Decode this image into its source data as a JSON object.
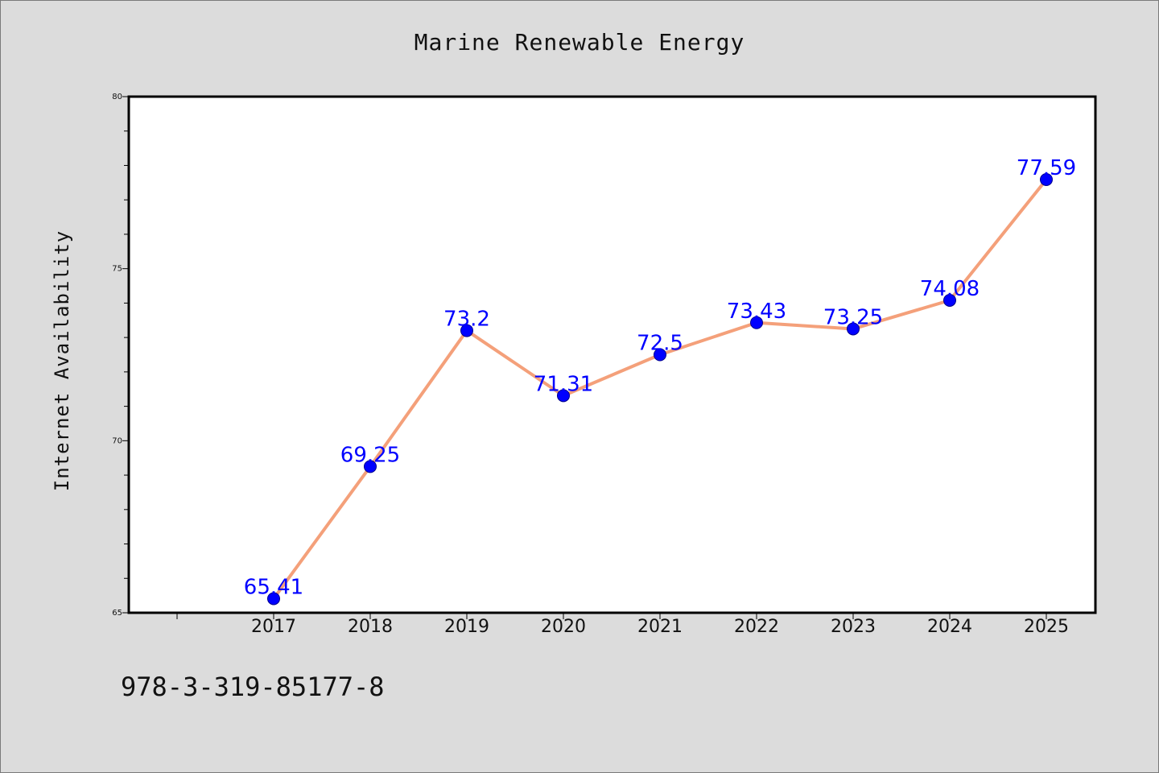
{
  "chart_data": {
    "type": "line",
    "title": "Marine Renewable Energy",
    "xlabel": "",
    "ylabel": "Internet Availability",
    "categories": [
      "2017",
      "2018",
      "2019",
      "2020",
      "2021",
      "2022",
      "2023",
      "2024",
      "2025"
    ],
    "series": [
      {
        "values": [
          65.41,
          69.25,
          73.2,
          71.31,
          72.5,
          73.43,
          73.25,
          74.08,
          77.59
        ],
        "labels": [
          "65.41",
          "69.25",
          "73.2",
          "71.31",
          "72.5",
          "73.43",
          "73.25",
          "74.08",
          "77.59"
        ]
      }
    ],
    "ylim": [
      65,
      80
    ],
    "yticks": [
      "65",
      "70",
      "75",
      "80"
    ],
    "grid": false,
    "legend": "none",
    "colors": {
      "line": "#f4a07a",
      "marker": "#0000ff",
      "label": "#0000ff",
      "background": "#dcdcdc",
      "plot_background": "#ffffff"
    }
  },
  "footer": {
    "identifier": "978-3-319-85177-8"
  }
}
